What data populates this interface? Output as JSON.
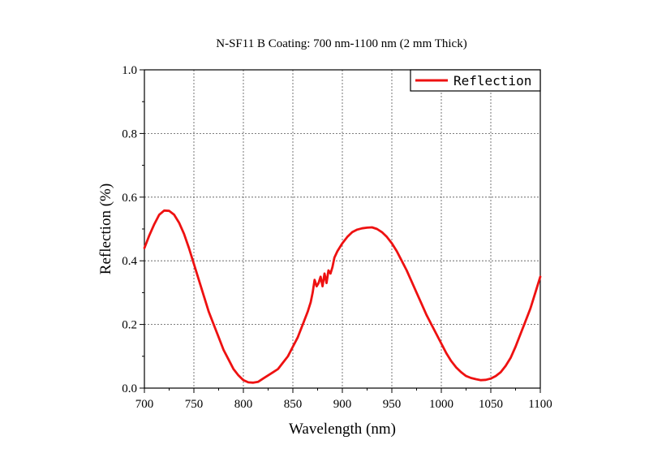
{
  "chart_data": {
    "type": "line",
    "title": "N-SF11 B Coating: 700 nm-1100 nm (2 mm Thick)",
    "xlabel": "Wavelength (nm)",
    "ylabel": "Reflection (%)",
    "xlim": [
      700,
      1100
    ],
    "ylim": [
      0,
      1.0
    ],
    "xticks": [
      700,
      750,
      800,
      850,
      900,
      950,
      1000,
      1050,
      1100
    ],
    "yticks": [
      0.0,
      0.2,
      0.4,
      0.6,
      0.8,
      1.0
    ],
    "xtick_labels": [
      "700",
      "750",
      "800",
      "850",
      "900",
      "950",
      "1000",
      "1050",
      "1100"
    ],
    "ytick_labels": [
      "0.0",
      "0.2",
      "0.4",
      "0.6",
      "0.8",
      "1.0"
    ],
    "grid": true,
    "legend_position": "top-right",
    "series": [
      {
        "name": "Reflection",
        "color": "#ee1111",
        "x": [
          700,
          705,
          710,
          715,
          720,
          725,
          730,
          735,
          740,
          745,
          750,
          755,
          760,
          765,
          770,
          775,
          780,
          785,
          790,
          795,
          800,
          805,
          810,
          815,
          820,
          825,
          830,
          835,
          840,
          845,
          850,
          855,
          860,
          865,
          868,
          870,
          872,
          874,
          876,
          878,
          880,
          882,
          884,
          886,
          888,
          890,
          892,
          895,
          900,
          905,
          910,
          915,
          920,
          925,
          930,
          935,
          940,
          945,
          950,
          955,
          960,
          965,
          970,
          975,
          980,
          985,
          990,
          995,
          1000,
          1005,
          1010,
          1015,
          1020,
          1025,
          1030,
          1035,
          1040,
          1045,
          1050,
          1055,
          1060,
          1065,
          1070,
          1075,
          1080,
          1085,
          1090,
          1095,
          1100
        ],
        "y": [
          0.44,
          0.48,
          0.515,
          0.545,
          0.558,
          0.557,
          0.545,
          0.52,
          0.485,
          0.44,
          0.39,
          0.34,
          0.29,
          0.24,
          0.2,
          0.16,
          0.12,
          0.09,
          0.06,
          0.04,
          0.025,
          0.018,
          0.017,
          0.02,
          0.03,
          0.04,
          0.05,
          0.06,
          0.08,
          0.1,
          0.13,
          0.16,
          0.2,
          0.24,
          0.27,
          0.3,
          0.34,
          0.32,
          0.33,
          0.35,
          0.32,
          0.36,
          0.33,
          0.37,
          0.36,
          0.38,
          0.41,
          0.43,
          0.455,
          0.475,
          0.49,
          0.498,
          0.502,
          0.504,
          0.505,
          0.5,
          0.49,
          0.475,
          0.455,
          0.43,
          0.4,
          0.37,
          0.335,
          0.3,
          0.265,
          0.23,
          0.2,
          0.17,
          0.14,
          0.11,
          0.085,
          0.065,
          0.05,
          0.038,
          0.032,
          0.028,
          0.025,
          0.026,
          0.03,
          0.038,
          0.05,
          0.07,
          0.095,
          0.13,
          0.17,
          0.21,
          0.25,
          0.3,
          0.35
        ]
      }
    ]
  }
}
